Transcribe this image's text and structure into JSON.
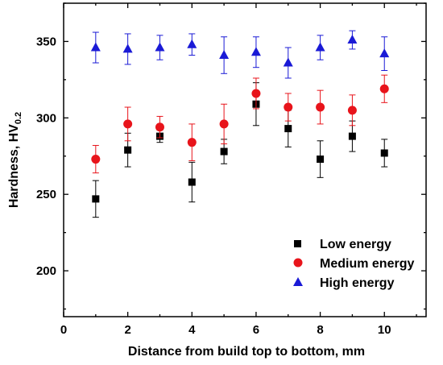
{
  "chart_data": {
    "type": "scatter",
    "xlabel": "Distance from build top to bottom, mm",
    "ylabel_main": "Hardness, HV",
    "ylabel_sub": "0.2",
    "xlim": [
      0,
      11.3
    ],
    "ylim": [
      170,
      375
    ],
    "xticks": [
      0,
      2,
      4,
      6,
      8,
      10
    ],
    "yticks": [
      200,
      250,
      300,
      350
    ],
    "legend_position": "bottom-right",
    "series": [
      {
        "name": "Low energy",
        "marker": "square",
        "color": "#000000",
        "x": [
          1,
          2,
          3,
          4,
          5,
          6,
          7,
          8,
          9,
          10
        ],
        "y": [
          247,
          279,
          288,
          258,
          278,
          309,
          293,
          273,
          288,
          277
        ],
        "err": [
          12,
          11,
          4,
          13,
          8,
          14,
          12,
          12,
          10,
          9
        ]
      },
      {
        "name": "Medium energy",
        "marker": "circle",
        "color": "#e8141b",
        "x": [
          1,
          2,
          3,
          4,
          5,
          6,
          7,
          8,
          9,
          10
        ],
        "y": [
          273,
          296,
          294,
          284,
          296,
          316,
          307,
          307,
          305,
          319
        ],
        "err": [
          9,
          11,
          7,
          12,
          13,
          10,
          9,
          11,
          10,
          9
        ]
      },
      {
        "name": "High energy",
        "marker": "triangle",
        "color": "#1a1ad6",
        "x": [
          1,
          2,
          3,
          4,
          5,
          6,
          7,
          8,
          9,
          10
        ],
        "y": [
          346,
          345,
          346,
          348,
          341,
          343,
          336,
          346,
          351,
          342
        ],
        "err": [
          10,
          10,
          8,
          7,
          12,
          10,
          10,
          8,
          6,
          11
        ]
      }
    ]
  }
}
